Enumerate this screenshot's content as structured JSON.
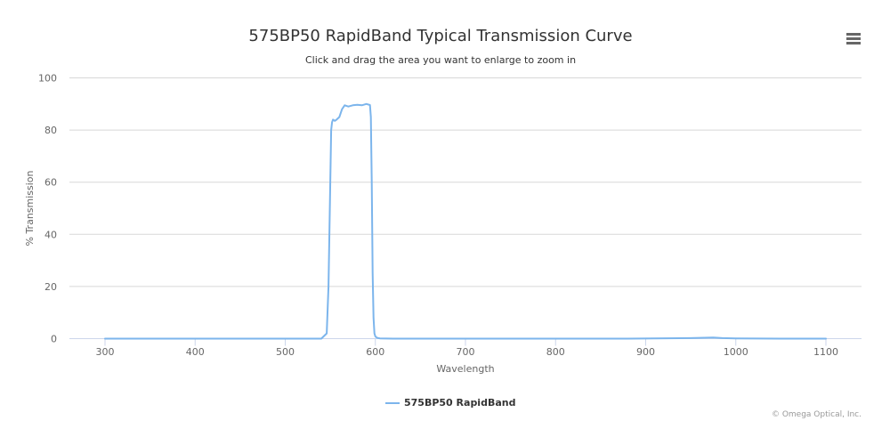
{
  "header": {
    "title": "575BP50 RapidBand Typical Transmission Curve",
    "subtitle": "Click and drag the area you want to enlarge to zoom in",
    "menu_icon": "hamburger-menu-icon"
  },
  "legend": {
    "label": "575BP50 RapidBand"
  },
  "credits": "© Omega Optical, Inc.",
  "colors": {
    "series": "#7cb5ec",
    "grid": "#d8d8d8",
    "axis_line": "#ccd6eb",
    "tick_label": "#666666",
    "axis_title": "#666666"
  },
  "chart_data": {
    "type": "line",
    "title": "575BP50 RapidBand Typical Transmission Curve",
    "subtitle": "Click and drag the area you want to enlarge to zoom in",
    "xlabel": "Wavelength",
    "ylabel": "% Transmission",
    "xlim": [
      300,
      1100
    ],
    "ylim": [
      0,
      100
    ],
    "xticks": [
      300,
      400,
      500,
      600,
      700,
      800,
      900,
      1000,
      1100
    ],
    "yticks": [
      0,
      20,
      40,
      60,
      80,
      100
    ],
    "grid": true,
    "legend_position": "bottom-center",
    "series": [
      {
        "name": "575BP50 RapidBand",
        "color": "#7cb5ec",
        "x": [
          300,
          400,
          500,
          540,
          546,
          548,
          550,
          551,
          552,
          553,
          555,
          557,
          560,
          563,
          566,
          570,
          575,
          580,
          585,
          590,
          594,
          595,
          596,
          597,
          598,
          599,
          600,
          602,
          605,
          620,
          700,
          800,
          880,
          950,
          975,
          985,
          1000,
          1050,
          1100
        ],
        "y": [
          0,
          0,
          0,
          0,
          2,
          20,
          60,
          80,
          83,
          84,
          83.5,
          84,
          85,
          88,
          89.5,
          89,
          89.5,
          89.7,
          89.5,
          90,
          89.6,
          85,
          60,
          25,
          8,
          2,
          0.8,
          0.3,
          0.1,
          0,
          0,
          0,
          0,
          0.2,
          0.4,
          0.2,
          0.1,
          0,
          0
        ]
      }
    ]
  }
}
